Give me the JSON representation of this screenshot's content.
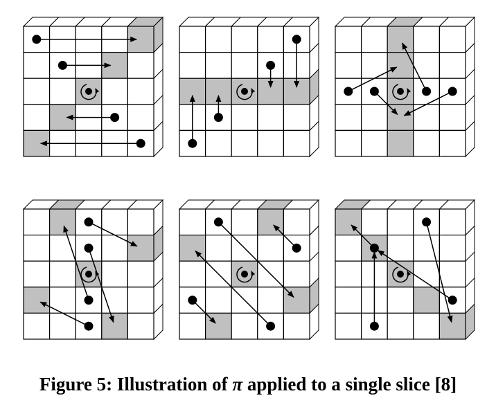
{
  "caption": {
    "prefix": "Figure 5:  Illustration of ",
    "symbol": "π",
    "suffix": " applied to a single slice [8]"
  },
  "colors": {
    "shaded": "#c0c0c0",
    "line": "#000000",
    "background": "#ffffff"
  },
  "icons": {
    "rotation": "rotation-icon",
    "dot": "lane-dot",
    "arrow": "arrow"
  },
  "grid_size": 5,
  "panels": [
    {
      "shaded": [
        [
          4,
          0
        ],
        [
          3,
          1
        ],
        [
          2,
          2
        ],
        [
          1,
          3
        ],
        [
          0,
          4
        ]
      ],
      "rotation": [
        2,
        2
      ],
      "moves": [
        [
          [
            0,
            0
          ],
          [
            4,
            0
          ]
        ],
        [
          [
            1,
            1
          ],
          [
            3,
            1
          ]
        ],
        [
          [
            3,
            3
          ],
          [
            1,
            3
          ]
        ],
        [
          [
            4,
            4
          ],
          [
            0,
            4
          ]
        ]
      ]
    },
    {
      "shaded": [
        [
          0,
          2
        ],
        [
          1,
          2
        ],
        [
          2,
          2
        ],
        [
          3,
          2
        ],
        [
          4,
          2
        ]
      ],
      "rotation": [
        2,
        2
      ],
      "moves": [
        [
          [
            3,
            1
          ],
          [
            3,
            2
          ]
        ],
        [
          [
            4,
            0
          ],
          [
            4,
            2
          ]
        ],
        [
          [
            1,
            3
          ],
          [
            1,
            2
          ]
        ],
        [
          [
            0,
            4
          ],
          [
            0,
            2
          ]
        ]
      ]
    },
    {
      "shaded": [
        [
          2,
          0
        ],
        [
          2,
          1
        ],
        [
          2,
          2
        ],
        [
          2,
          3
        ],
        [
          2,
          4
        ]
      ],
      "rotation": [
        2,
        2
      ],
      "moves": [
        [
          [
            3,
            2
          ],
          [
            2,
            0
          ]
        ],
        [
          [
            0,
            2
          ],
          [
            2,
            1
          ]
        ],
        [
          [
            1,
            2
          ],
          [
            2,
            3
          ]
        ],
        [
          [
            4,
            2
          ],
          [
            2,
            3
          ]
        ]
      ]
    },
    {
      "shaded": [
        [
          1,
          0
        ],
        [
          4,
          1
        ],
        [
          2,
          2
        ],
        [
          0,
          3
        ],
        [
          3,
          4
        ]
      ],
      "rotation": [
        2,
        2
      ],
      "moves": [
        [
          [
            2,
            0
          ],
          [
            4,
            1
          ]
        ],
        [
          [
            2,
            1
          ],
          [
            3,
            4
          ]
        ],
        [
          [
            2,
            3
          ],
          [
            1,
            0
          ]
        ],
        [
          [
            2,
            4
          ],
          [
            0,
            3
          ]
        ]
      ]
    },
    {
      "shaded": [
        [
          3,
          0
        ],
        [
          0,
          1
        ],
        [
          2,
          2
        ],
        [
          4,
          3
        ],
        [
          1,
          4
        ]
      ],
      "rotation": [
        2,
        2
      ],
      "moves": [
        [
          [
            4,
            1
          ],
          [
            3,
            0
          ]
        ],
        [
          [
            1,
            0
          ],
          [
            4,
            3
          ]
        ],
        [
          [
            0,
            3
          ],
          [
            1,
            4
          ]
        ],
        [
          [
            3,
            4
          ],
          [
            0,
            1
          ]
        ]
      ]
    },
    {
      "shaded": [
        [
          0,
          0
        ],
        [
          1,
          1
        ],
        [
          2,
          2
        ],
        [
          3,
          3
        ],
        [
          4,
          4
        ]
      ],
      "rotation": [
        2,
        2
      ],
      "moves": [
        [
          [
            1,
            1
          ],
          [
            0,
            0
          ]
        ],
        [
          [
            1,
            4
          ],
          [
            1,
            1
          ]
        ],
        [
          [
            3,
            0
          ],
          [
            4,
            4
          ]
        ],
        [
          [
            4,
            3
          ],
          [
            1,
            1
          ]
        ]
      ]
    }
  ]
}
